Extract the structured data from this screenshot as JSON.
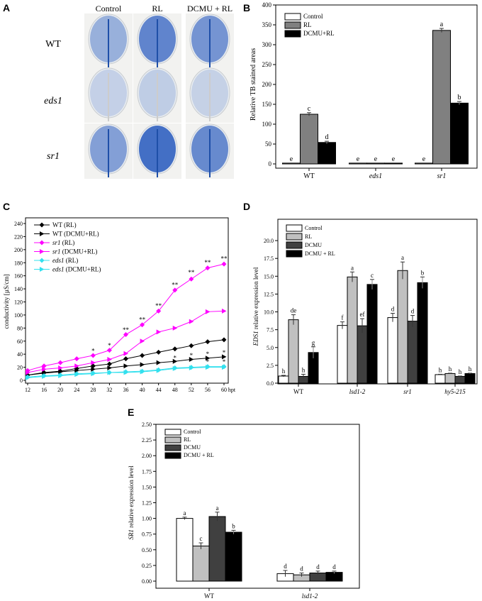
{
  "panels": {
    "A": "A",
    "B": "B",
    "C": "C",
    "D": "D",
    "E": "E"
  },
  "photos": {
    "columns": [
      "Control",
      "RL",
      "DCMU + RL"
    ],
    "rows": [
      "WT",
      "eds1",
      "sr1"
    ],
    "stain_intensity": [
      [
        0.35,
        0.75,
        0.6
      ],
      [
        0.05,
        0.08,
        0.04
      ],
      [
        0.5,
        0.95,
        0.7
      ]
    ]
  },
  "chart_data": [
    {
      "id": "B",
      "type": "bar",
      "ylabel": "Relative TB stained areas",
      "ylim": [
        0,
        400
      ],
      "yticks": [
        0,
        50,
        100,
        150,
        200,
        250,
        300,
        350,
        400
      ],
      "categories": [
        "WT",
        "eds1",
        "sr1"
      ],
      "italic_categories": [
        false,
        true,
        true
      ],
      "series": [
        {
          "name": "Control",
          "color": "#ffffff",
          "values": [
            2,
            2,
            2
          ],
          "errors": [
            0,
            0,
            0
          ],
          "letters": [
            "e",
            "e",
            "e"
          ]
        },
        {
          "name": "RL",
          "color": "#808080",
          "values": [
            125,
            2,
            336
          ],
          "errors": [
            4,
            0,
            5
          ],
          "letters": [
            "c",
            "e",
            "a"
          ]
        },
        {
          "name": "DCMU+RL",
          "color": "#000000",
          "values": [
            54,
            2,
            153
          ],
          "errors": [
            3,
            0,
            4
          ],
          "letters": [
            "d",
            "e",
            "b"
          ]
        }
      ],
      "legend": "top-left"
    },
    {
      "id": "C",
      "type": "line",
      "ylabel": "conductivity [µS/cm]",
      "xlabel": "hpt",
      "x": [
        12,
        16,
        20,
        24,
        28,
        32,
        36,
        40,
        44,
        48,
        52,
        56,
        60
      ],
      "ylim": [
        0,
        240
      ],
      "yticks": [
        0,
        20,
        40,
        60,
        80,
        100,
        120,
        140,
        160,
        180,
        200,
        220,
        240
      ],
      "series": [
        {
          "name": "WT (RL)",
          "italic": "",
          "rest": "WT (RL)",
          "color": "#000000",
          "marker": "diamond",
          "values": [
            8,
            12,
            14,
            18,
            22,
            25,
            33,
            38,
            43,
            48,
            53,
            59,
            62
          ]
        },
        {
          "name": "WT (DCMU+RL)",
          "italic": "",
          "rest": "WT (DCMU+RL)",
          "color": "#000000",
          "marker": "triangle",
          "values": [
            8,
            11,
            13,
            15,
            17,
            19,
            22,
            24,
            27,
            29,
            32,
            34,
            36
          ]
        },
        {
          "name": "sr1 (RL)",
          "italic": "sr1",
          "rest": " (RL)",
          "color": "#ff00ff",
          "marker": "diamond",
          "values": [
            15,
            22,
            27,
            33,
            38,
            46,
            70,
            85,
            106,
            138,
            155,
            172,
            178
          ]
        },
        {
          "name": "sr1 (DCMU+RL)",
          "italic": "sr1",
          "rest": " (DCMU+RL)",
          "color": "#ff00ff",
          "marker": "triangle",
          "values": [
            12,
            17,
            19,
            22,
            27,
            32,
            41,
            60,
            74,
            80,
            90,
            105,
            106
          ]
        },
        {
          "name": "eds1 (RL)",
          "italic": "eds1",
          "rest": " (RL)",
          "color": "#33e0ee",
          "marker": "diamond",
          "values": [
            5,
            7,
            8,
            10,
            11,
            12,
            13,
            14,
            16,
            19,
            20,
            21,
            21
          ]
        },
        {
          "name": "eds1 (DCMU+RL)",
          "italic": "eds1",
          "rest": " (DCMU+RL)",
          "color": "#33e0ee",
          "marker": "triangle",
          "values": [
            4,
            6,
            7,
            9,
            10,
            12,
            12,
            13,
            15,
            18,
            19,
            20,
            20
          ]
        }
      ],
      "annotations": [
        {
          "x": 28,
          "y": 44,
          "text": "*"
        },
        {
          "x": 32,
          "y": 52,
          "text": "*"
        },
        {
          "x": 36,
          "y": 76,
          "text": "**"
        },
        {
          "x": 40,
          "y": 92,
          "text": "**"
        },
        {
          "x": 44,
          "y": 113,
          "text": "**"
        },
        {
          "x": 48,
          "y": 145,
          "text": "**"
        },
        {
          "x": 52,
          "y": 164,
          "text": "**"
        },
        {
          "x": 56,
          "y": 179,
          "text": "**"
        },
        {
          "x": 60,
          "y": 185,
          "text": "**"
        },
        {
          "x": 48,
          "y": 33,
          "text": "*"
        },
        {
          "x": 52,
          "y": 37,
          "text": "*"
        },
        {
          "x": 56,
          "y": 39,
          "text": "*"
        },
        {
          "x": 60,
          "y": 41,
          "text": "*"
        },
        {
          "x": 56,
          "y": 27,
          "text": "*"
        },
        {
          "x": 60,
          "y": 27,
          "text": "*"
        }
      ],
      "legend": "top-left"
    },
    {
      "id": "D",
      "type": "bar",
      "ylabel_italic": "EDS1",
      "ylabel": " relative expression level",
      "ylim": [
        0,
        21.5
      ],
      "yticks": [
        "0.0",
        "2.5",
        "5.0",
        "7.5",
        "10.0",
        "12.5",
        "15.0",
        "17.5",
        "20.0"
      ],
      "categories": [
        "WT",
        "lsd1-2",
        "sr1",
        "hy5-215"
      ],
      "italic_categories": [
        false,
        true,
        true,
        true
      ],
      "series": [
        {
          "name": "Control",
          "color": "#ffffff",
          "values": [
            1.0,
            8.1,
            9.2,
            1.2
          ],
          "errors": [
            0.1,
            0.5,
            0.6,
            0.05
          ],
          "letters": [
            "h",
            "f",
            "d",
            "h"
          ]
        },
        {
          "name": "RL",
          "color": "#c0c0c0",
          "values": [
            8.9,
            14.9,
            15.8,
            1.35
          ],
          "errors": [
            0.7,
            0.7,
            1.2,
            0.05
          ],
          "letters": [
            "de",
            "a",
            "a",
            "h"
          ]
        },
        {
          "name": "DCMU",
          "color": "#404040",
          "values": [
            0.95,
            8.05,
            8.7,
            0.95
          ],
          "errors": [
            0.3,
            1.0,
            0.8,
            0.05
          ],
          "letters": [
            "h",
            "ef",
            "d",
            "h"
          ]
        },
        {
          "name": "DCMU + RL",
          "color": "#000000",
          "values": [
            4.3,
            13.85,
            14.1,
            1.35
          ],
          "errors": [
            0.8,
            0.7,
            0.8,
            0.05
          ],
          "letters": [
            "g",
            "c",
            "b",
            "h"
          ]
        }
      ],
      "legend": "top-left"
    },
    {
      "id": "E",
      "type": "bar",
      "ylabel_italic": "SR1",
      "ylabel": " relative expression level",
      "ylim": [
        0,
        2.5
      ],
      "yticks": [
        "0.00",
        "0.25",
        "0.50",
        "0.75",
        "1.00",
        "1.25",
        "1.50",
        "1.75",
        "2.00",
        "2.25",
        "2.50"
      ],
      "categories": [
        "WT",
        "lsd1-2"
      ],
      "italic_categories": [
        false,
        true
      ],
      "series": [
        {
          "name": "Control",
          "color": "#ffffff",
          "values": [
            1.0,
            0.12
          ],
          "errors": [
            0.02,
            0.05
          ],
          "letters": [
            "a",
            "d"
          ]
        },
        {
          "name": "RL",
          "color": "#c0c0c0",
          "values": [
            0.56,
            0.1
          ],
          "errors": [
            0.05,
            0.03
          ],
          "letters": [
            "c",
            "d"
          ]
        },
        {
          "name": "DCMU",
          "color": "#404040",
          "values": [
            1.03,
            0.13
          ],
          "errors": [
            0.07,
            0.03
          ],
          "letters": [
            "a",
            "d"
          ]
        },
        {
          "name": "DCMU + RL",
          "color": "#000000",
          "values": [
            0.78,
            0.14
          ],
          "errors": [
            0.03,
            0.02
          ],
          "letters": [
            "b",
            "d"
          ]
        }
      ],
      "legend": "top-left"
    }
  ]
}
